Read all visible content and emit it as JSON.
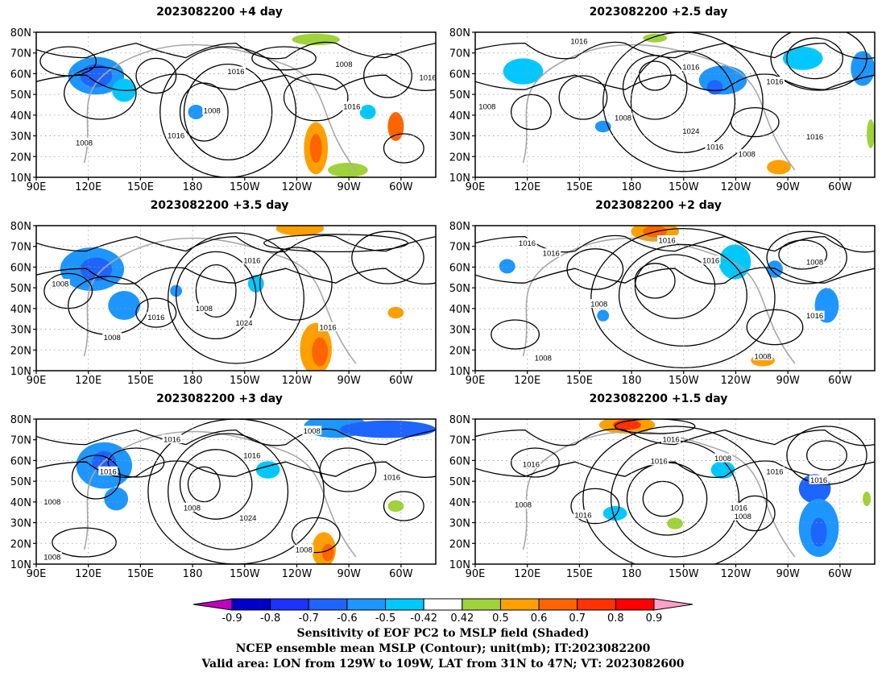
{
  "panels": [
    {
      "title": "2023082200  +4 day",
      "labels": [
        "1008",
        "1016",
        "1008",
        "1016",
        "1016",
        "1008",
        "1016"
      ]
    },
    {
      "title": "2023082200  +2.5 day",
      "labels": [
        "1016",
        "1008",
        "1016",
        "1008",
        "1024",
        "1016",
        "1016",
        "1008",
        "1016"
      ]
    },
    {
      "title": "2023082200  +3.5 day",
      "labels": [
        "1008",
        "1016",
        "1008",
        "1008",
        "1024",
        "1016",
        "1016"
      ]
    },
    {
      "title": "2023082200  +2 day",
      "labels": [
        "1016",
        "1016",
        "1016",
        "1016",
        "1008",
        "1008",
        "1016",
        "1008",
        "1008"
      ]
    },
    {
      "title": "2023082200  +3 day",
      "labels": [
        "1016",
        "1008",
        "1016",
        "1008",
        "1008",
        "1016",
        "1024",
        "1008",
        "1008",
        "1016"
      ]
    },
    {
      "title": "2023082200  +1.5 day",
      "labels": [
        "1016",
        "1016",
        "1016",
        "1016",
        "1008",
        "1008",
        "1016",
        "1016",
        "1016",
        "1008"
      ]
    }
  ],
  "axes": {
    "lat_ticks": [
      "80N",
      "70N",
      "60N",
      "50N",
      "40N",
      "30N",
      "20N",
      "10N"
    ],
    "lon_ticks": [
      "90E",
      "120E",
      "150E",
      "180",
      "150W",
      "120W",
      "90W",
      "60W"
    ],
    "lat_range": [
      10,
      80
    ],
    "lon_range_deg_east": [
      90,
      320
    ]
  },
  "colorbar": {
    "tick_labels": [
      "-0.9",
      "-0.8",
      "-0.7",
      "-0.6",
      "-0.5",
      "-0.42",
      "0.42",
      "0.5",
      "0.6",
      "0.7",
      "0.8",
      "0.9"
    ],
    "colors": [
      "#c000c0",
      "#0000c8",
      "#1e32ff",
      "#1e64ff",
      "#1e96ff",
      "#00c8ff",
      "#ffffff",
      "#a0d23c",
      "#ffa000",
      "#ff6400",
      "#ff3200",
      "#ff0000",
      "#ffa0c8"
    ]
  },
  "caption": {
    "line1": "Sensitivity of EOF PC2 to MSLP field (Shaded)",
    "line2": "NCEP ensemble mean MSLP (Contour); unit(mb); IT:2023082200",
    "line3": "Valid area: LON from 129W to 109W, LAT from 31N to 47N; VT: 2023082600"
  }
}
